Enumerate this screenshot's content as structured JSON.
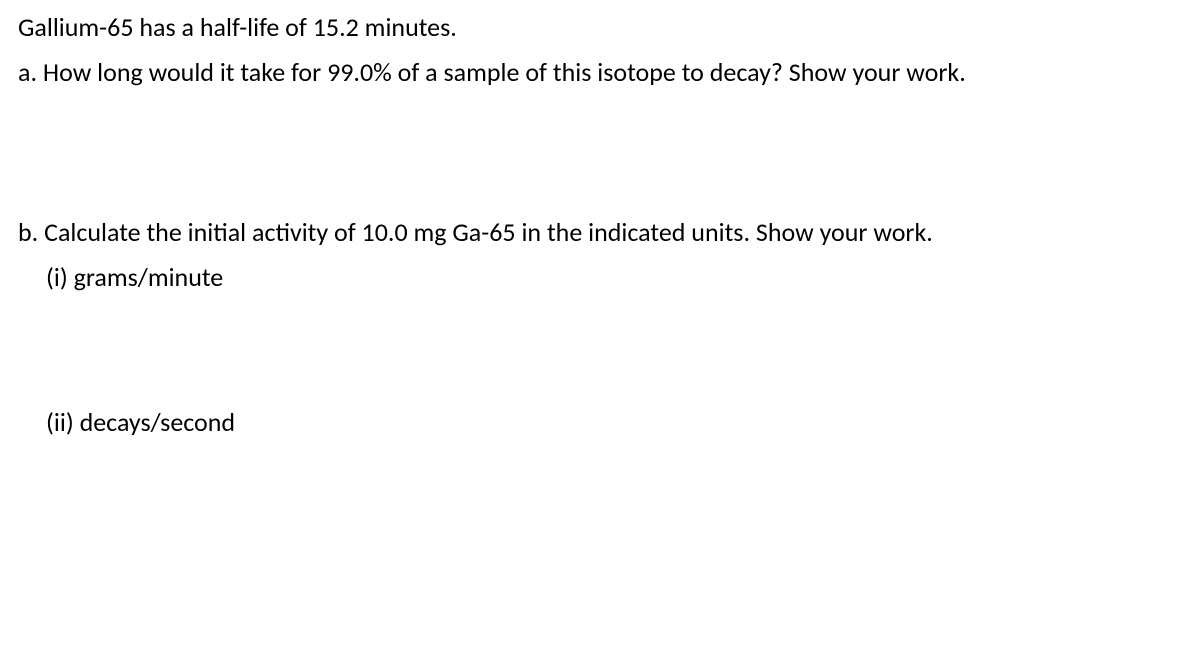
{
  "problem": {
    "intro": "Gallium-65 has a half-life of 15.2 minutes.",
    "part_a": "a. How long would it take for 99.0% of a sample of this isotope to decay? Show your work.",
    "part_b": "b. Calculate the initial activity of 10.0 mg Ga-65 in the indicated units. Show your work.",
    "sub_i": "(i)  grams/minute",
    "sub_ii": "(ii)  decays/second"
  }
}
